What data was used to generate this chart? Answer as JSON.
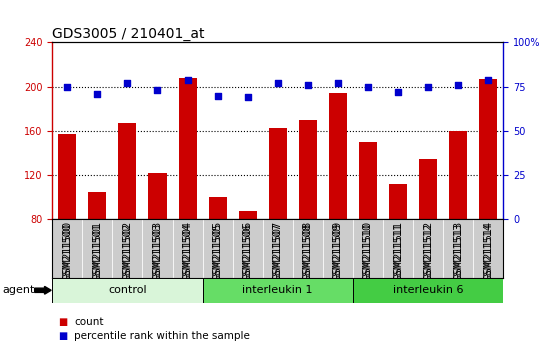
{
  "title": "GDS3005 / 210401_at",
  "samples": [
    "GSM211500",
    "GSM211501",
    "GSM211502",
    "GSM211503",
    "GSM211504",
    "GSM211505",
    "GSM211506",
    "GSM211507",
    "GSM211508",
    "GSM211509",
    "GSM211510",
    "GSM211511",
    "GSM211512",
    "GSM211513",
    "GSM211514"
  ],
  "counts": [
    157,
    105,
    167,
    122,
    208,
    100,
    88,
    163,
    170,
    194,
    150,
    112,
    135,
    160,
    207
  ],
  "percentiles_pct": [
    75,
    71,
    77,
    73,
    79,
    70,
    69,
    77,
    76,
    77,
    75,
    72,
    75,
    76,
    79
  ],
  "bar_color": "#cc0000",
  "dot_color": "#0000cc",
  "ylim_left": [
    80,
    240
  ],
  "ylim_right": [
    0,
    100
  ],
  "yticks_left": [
    80,
    120,
    160,
    200,
    240
  ],
  "yticks_right": [
    0,
    25,
    50,
    75,
    100
  ],
  "grid_values": [
    120,
    160,
    200
  ],
  "groups": [
    {
      "label": "control",
      "start": 0,
      "end": 5,
      "color": "#d9f5d9"
    },
    {
      "label": "interleukin 1",
      "start": 5,
      "end": 10,
      "color": "#66dd66"
    },
    {
      "label": "interleukin 6",
      "start": 10,
      "end": 15,
      "color": "#44cc44"
    }
  ],
  "agent_label": "agent",
  "legend_count_label": "count",
  "legend_pct_label": "percentile rank within the sample",
  "title_fontsize": 10,
  "tick_fontsize": 7,
  "label_fontsize": 7,
  "axis_label_color_left": "#cc0000",
  "axis_label_color_right": "#0000cc",
  "xtick_bg_color": "#cccccc",
  "bar_width": 0.6
}
